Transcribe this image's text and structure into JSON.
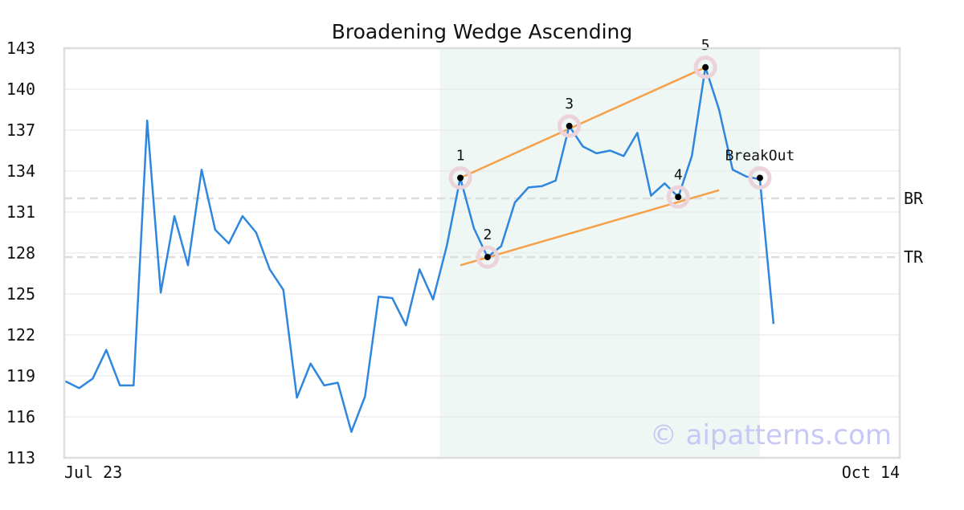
{
  "chart_data": {
    "type": "line",
    "title": "Broadening Wedge Ascending",
    "xlabel": "",
    "ylabel": "",
    "ylim": [
      113,
      143
    ],
    "y_ticks": [
      "113",
      "116",
      "119",
      "122",
      "125",
      "128",
      "131",
      "134",
      "137",
      "140",
      "143"
    ],
    "x_ticks": [
      {
        "index": 0,
        "label": "Jul 23"
      },
      {
        "index": 61,
        "label": "Oct 14"
      }
    ],
    "grid": "horizontal",
    "series": [
      {
        "values": [
          118.6,
          118.1,
          118.8,
          120.9,
          118.3,
          118.3,
          137.7,
          125.1,
          130.7,
          127.1,
          134.1,
          129.7,
          128.7,
          130.7,
          129.5,
          126.8,
          125.3,
          117.4,
          119.9,
          118.3,
          118.5,
          114.9,
          117.5,
          124.8,
          124.7,
          122.7,
          126.8,
          124.6,
          128.5,
          133.5,
          129.8,
          127.7,
          128.5,
          131.7,
          132.8,
          132.9,
          133.3,
          137.3,
          135.8,
          135.3,
          135.5,
          135.1,
          136.8,
          132.2,
          133.1,
          132.1,
          135.1,
          141.6,
          138.5,
          134.1,
          133.6,
          133.4,
          122.8
        ]
      }
    ],
    "pattern_region": {
      "start_index": 27.5,
      "end_index": 51
    },
    "pattern_points": [
      {
        "label": "1",
        "index": 29,
        "value": 133.5
      },
      {
        "label": "2",
        "index": 31,
        "value": 127.7
      },
      {
        "label": "3",
        "index": 37,
        "value": 137.3
      },
      {
        "label": "4",
        "index": 45,
        "value": 132.1
      },
      {
        "label": "5",
        "index": 47,
        "value": 141.6
      },
      {
        "label": "BreakOut",
        "index": 51,
        "value": 133.5
      }
    ],
    "trend_lines": [
      {
        "name": "upper",
        "from": {
          "index": 29,
          "value": 133.5
        },
        "to": {
          "index": 47,
          "value": 141.6
        }
      },
      {
        "name": "lower",
        "from": {
          "index": 29,
          "value": 127.1
        },
        "to": {
          "index": 48,
          "value": 132.6
        }
      }
    ],
    "reference_lines": [
      {
        "label": "BR",
        "value": 132.0
      },
      {
        "label": "TR",
        "value": 127.7
      }
    ],
    "watermark": "© aipatterns.com",
    "colors": {
      "line": "#2e86de",
      "trend": "#f5a04a",
      "region": "#eef7f3",
      "marker_halo": "#ecd3da",
      "ref_line": "#dddddd",
      "watermark": "#c8c8f5"
    }
  }
}
